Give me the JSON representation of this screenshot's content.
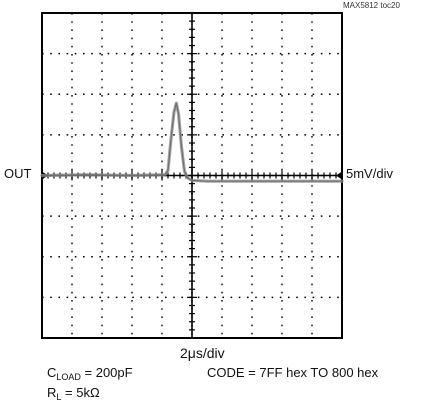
{
  "figure_id": "MAX5812 toc20",
  "channel_label": "OUT",
  "vertical_scale": "5mV/div",
  "time_scale": "2μs/div",
  "conditions": {
    "load_prefix": "C",
    "load_sub": "LOAD",
    "load_value": " = 200pF",
    "code": "CODE = 7FF hex TO 800 hex",
    "res_prefix": "R",
    "res_sub": "L",
    "res_value": " = 5kΩ"
  },
  "colors": {
    "trace": "#8a8a8a",
    "grid": "#000000"
  },
  "chart_data": {
    "type": "line",
    "title": "",
    "xlabel": "2μs/div",
    "ylabel": "5mV/div",
    "grid": true,
    "x_unit": "μs",
    "y_unit": "mV",
    "xlim": [
      0,
      20
    ],
    "ylim": [
      -20,
      20
    ],
    "series": [
      {
        "values": [
          [
            0,
            0.0
          ],
          [
            3,
            0.1
          ],
          [
            6,
            0.0
          ],
          [
            8.2,
            0.1
          ],
          [
            8.4,
            0.6
          ],
          [
            8.6,
            4.5
          ],
          [
            8.8,
            7.8
          ],
          [
            8.95,
            8.9
          ],
          [
            9.1,
            7.6
          ],
          [
            9.3,
            3.5
          ],
          [
            9.5,
            0.5
          ],
          [
            9.7,
            -0.3
          ],
          [
            10.0,
            -0.6
          ],
          [
            11,
            -0.7
          ],
          [
            13,
            -0.7
          ],
          [
            16,
            -0.7
          ],
          [
            20,
            -0.7
          ]
        ]
      }
    ]
  }
}
